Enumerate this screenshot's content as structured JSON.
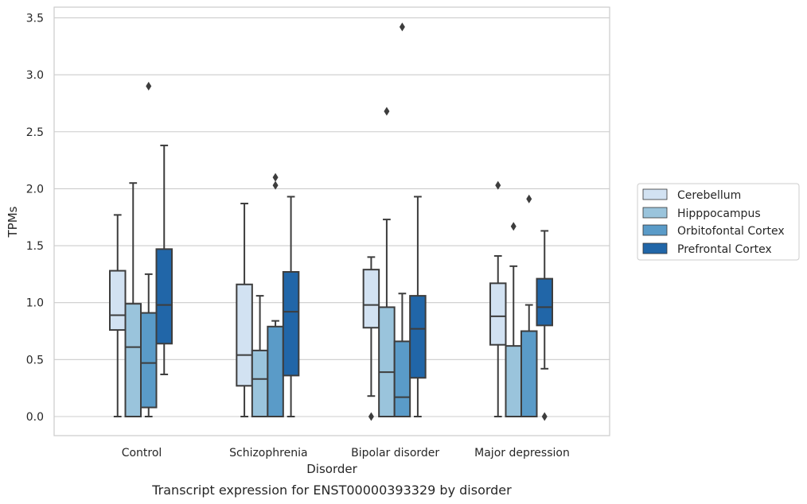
{
  "chart_data": {
    "type": "box",
    "title": "",
    "caption": "Transcript expression for ENST00000393329 by disorder",
    "xlabel": "Disorder",
    "ylabel": "TPMs",
    "ylim": [
      -0.17,
      3.6
    ],
    "yticks": [
      "0.0",
      "0.5",
      "1.0",
      "1.5",
      "2.0",
      "2.5",
      "3.0",
      "3.5"
    ],
    "grid": "horizontal",
    "legend_position": "right",
    "categories": [
      "Control",
      "Schizophrenia",
      "Bipolar disorder",
      "Major depression"
    ],
    "series": [
      {
        "name": "Cerebellum",
        "color": "#d2e2f2",
        "boxes": [
          {
            "whislo": 0.0,
            "q1": 0.76,
            "med": 0.89,
            "q3": 1.28,
            "whishi": 1.77,
            "fliers": []
          },
          {
            "whislo": 0.0,
            "q1": 0.27,
            "med": 0.54,
            "q3": 1.16,
            "whishi": 1.87,
            "fliers": []
          },
          {
            "whislo": 0.18,
            "q1": 0.78,
            "med": 0.98,
            "q3": 1.29,
            "whishi": 1.4,
            "fliers": [
              0.0
            ]
          },
          {
            "whislo": 0.0,
            "q1": 0.63,
            "med": 0.88,
            "q3": 1.17,
            "whishi": 1.41,
            "fliers": [
              2.03
            ]
          }
        ]
      },
      {
        "name": "Hipppocampus",
        "color": "#9ac4dc",
        "boxes": [
          {
            "whislo": 0.0,
            "q1": 0.0,
            "med": 0.61,
            "q3": 0.99,
            "whishi": 2.05,
            "fliers": []
          },
          {
            "whislo": 0.0,
            "q1": 0.0,
            "med": 0.33,
            "q3": 0.58,
            "whishi": 1.06,
            "fliers": []
          },
          {
            "whislo": 0.0,
            "q1": 0.0,
            "med": 0.39,
            "q3": 0.96,
            "whishi": 1.73,
            "fliers": [
              2.68
            ]
          },
          {
            "whislo": 0.0,
            "q1": 0.0,
            "med": 0.0,
            "q3": 0.62,
            "whishi": 1.32,
            "fliers": [
              1.67
            ]
          }
        ]
      },
      {
        "name": "Orbitofontal Cortex",
        "color": "#5a9bc8",
        "boxes": [
          {
            "whislo": 0.0,
            "q1": 0.08,
            "med": 0.47,
            "q3": 0.91,
            "whishi": 1.25,
            "fliers": [
              2.9
            ]
          },
          {
            "whislo": 0.0,
            "q1": 0.0,
            "med": 0.0,
            "q3": 0.79,
            "whishi": 0.84,
            "fliers": [
              2.03,
              2.1
            ]
          },
          {
            "whislo": 0.0,
            "q1": 0.0,
            "med": 0.17,
            "q3": 0.66,
            "whishi": 1.08,
            "fliers": [
              3.42
            ]
          },
          {
            "whislo": 0.0,
            "q1": 0.0,
            "med": 0.0,
            "q3": 0.75,
            "whishi": 0.98,
            "fliers": [
              1.91
            ]
          }
        ]
      },
      {
        "name": "Prefrontal Cortex",
        "color": "#2166a8",
        "boxes": [
          {
            "whislo": 0.37,
            "q1": 0.64,
            "med": 0.98,
            "q3": 1.47,
            "whishi": 2.38,
            "fliers": []
          },
          {
            "whislo": 0.0,
            "q1": 0.36,
            "med": 0.92,
            "q3": 1.27,
            "whishi": 1.93,
            "fliers": []
          },
          {
            "whislo": 0.0,
            "q1": 0.34,
            "med": 0.77,
            "q3": 1.06,
            "whishi": 1.93,
            "fliers": []
          },
          {
            "whislo": 0.42,
            "q1": 0.8,
            "med": 0.96,
            "q3": 1.21,
            "whishi": 1.63,
            "fliers": [
              0.0
            ]
          }
        ]
      }
    ]
  }
}
